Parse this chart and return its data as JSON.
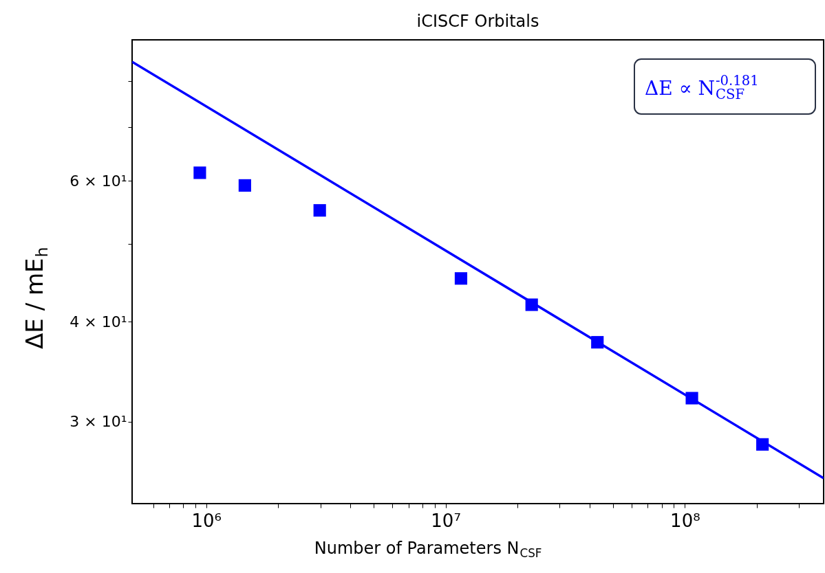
{
  "chart_data": {
    "type": "scatter",
    "title": "iCISCF Orbitals",
    "xlabel": "Number of Parameters N$_{CSF}$",
    "ylabel": "ΔE / mE$_{h}$",
    "log": "xy",
    "grid": false,
    "marker": "square",
    "xlim": [
      490000,
      380000000
    ],
    "ylim": [
      23.7,
      90
    ],
    "xticks": [
      {
        "value": 600000,
        "label": null
      },
      {
        "value": 700000,
        "label": null
      },
      {
        "value": 800000,
        "label": null
      },
      {
        "value": 900000,
        "label": null
      },
      {
        "value": 1000000,
        "label": "10⁶"
      },
      {
        "value": 2000000,
        "label": null
      },
      {
        "value": 3000000,
        "label": null
      },
      {
        "value": 4000000,
        "label": null
      },
      {
        "value": 5000000,
        "label": null
      },
      {
        "value": 6000000,
        "label": null
      },
      {
        "value": 7000000,
        "label": null
      },
      {
        "value": 8000000,
        "label": null
      },
      {
        "value": 9000000,
        "label": null
      },
      {
        "value": 10000000,
        "label": "10⁷"
      },
      {
        "value": 20000000,
        "label": null
      },
      {
        "value": 30000000,
        "label": null
      },
      {
        "value": 40000000,
        "label": null
      },
      {
        "value": 50000000,
        "label": null
      },
      {
        "value": 60000000,
        "label": null
      },
      {
        "value": 70000000,
        "label": null
      },
      {
        "value": 80000000,
        "label": null
      },
      {
        "value": 90000000,
        "label": null
      },
      {
        "value": 100000000,
        "label": "10⁸"
      },
      {
        "value": 200000000,
        "label": null
      },
      {
        "value": 300000000,
        "label": null
      }
    ],
    "yticks": [
      {
        "value": 30,
        "label": "3 × 10¹"
      },
      {
        "value": 40,
        "label": "4 × 10¹"
      },
      {
        "value": 50,
        "label": null
      },
      {
        "value": 60,
        "label": "6 × 10¹"
      },
      {
        "value": 70,
        "label": null
      },
      {
        "value": 80,
        "label": null
      }
    ],
    "series": [
      {
        "color": "#0000ff",
        "x": [
          940000,
          1450000,
          2980000,
          11600000,
          22900000,
          43100000,
          107000000,
          211000000
        ],
        "values": [
          61.4,
          59.2,
          55.1,
          45.3,
          42.0,
          37.7,
          32.1,
          28.1
        ]
      },
      {
        "type": "line",
        "color": "#0000ff",
        "marker": "none",
        "x": [
          490000,
          380000000
        ],
        "values": [
          84.5,
          25.5
        ]
      }
    ],
    "annotations": [
      "ΔE ∝ N$_{CSF}$$^{-0.181}$"
    ]
  }
}
